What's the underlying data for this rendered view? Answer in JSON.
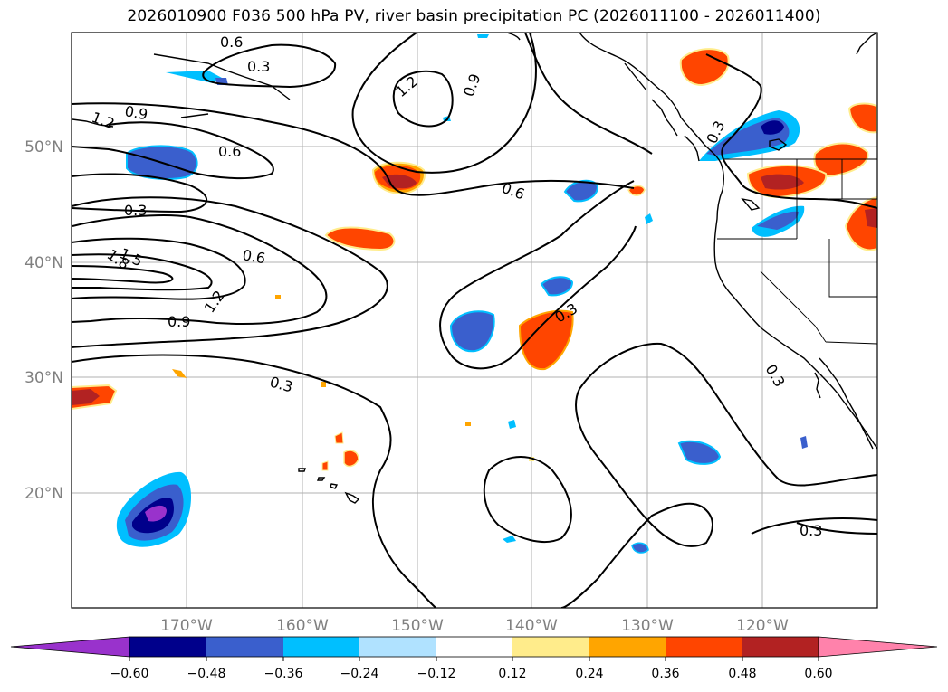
{
  "title": "2026010900 F036 500 hPa PV, river basin precipitation PC (2026011100 - 2026011400)",
  "lon_labels": [
    "170°W",
    "160°W",
    "150°W",
    "140°W",
    "130°W",
    "120°W"
  ],
  "lat_labels": [
    "50°N",
    "40°N",
    "30°N",
    "20°N"
  ],
  "contour_labels": [
    "0.6",
    "0.3",
    "1.2",
    "0.9",
    "0.9",
    "0.6",
    "0.3",
    "1.5",
    "1.8",
    "0.6",
    "1.2",
    "0.9",
    "0.6",
    "0.3",
    "0.3",
    "0.3",
    "0.3",
    "0.3",
    "1.2"
  ],
  "colorbar": {
    "ticks": [
      "−0.60",
      "−0.48",
      "−0.36",
      "−0.24",
      "−0.12",
      "0.12",
      "0.24",
      "0.36",
      "0.48",
      "0.60"
    ],
    "colors": [
      "#9932cc",
      "#00008b",
      "#3a5fcd",
      "#00bfff",
      "#b0e2ff",
      "#ffffff",
      "#ffec8b",
      "#ffa500",
      "#ff4500",
      "#b22222",
      "#ff82ab"
    ]
  },
  "colors": {
    "land_outline": "#000000",
    "grid": "#b0b0b0",
    "axis_label": "#808080",
    "contour": "#000000"
  },
  "icons": [
    "map-frame",
    "colorbar-left-extend-arrow",
    "colorbar-right-extend-arrow"
  ]
}
